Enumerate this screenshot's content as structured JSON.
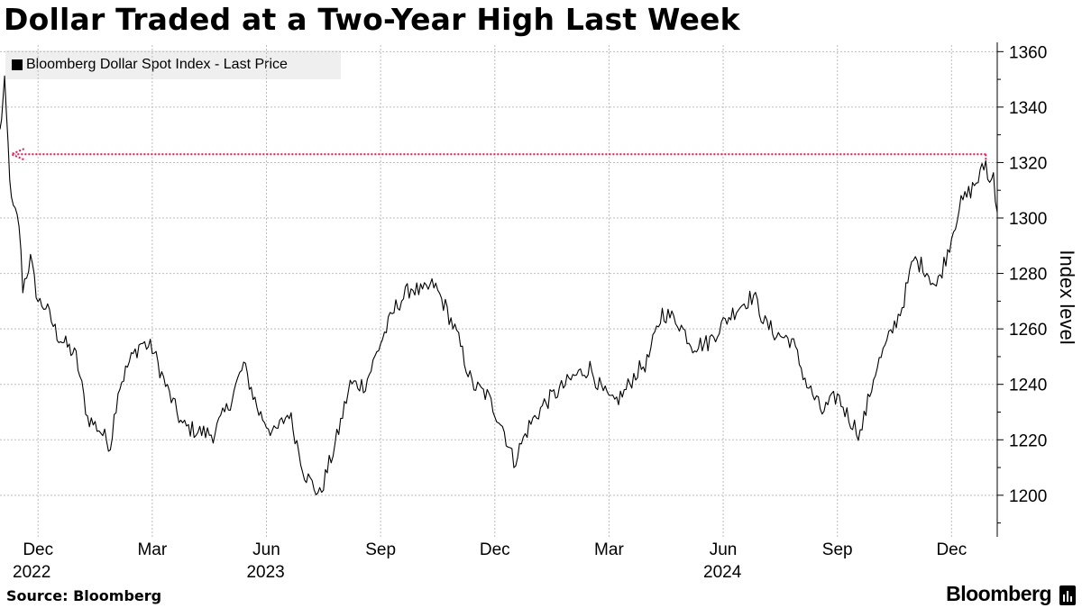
{
  "title": "Dollar Traded at a Two-Year High Last Week",
  "source": "Source: Bloomberg",
  "brand": "Bloomberg",
  "colors": {
    "line": "#000000",
    "reference": "#e8174f",
    "grid": "#bdbdbd",
    "legend_bg": "#efefef"
  },
  "chart_data": {
    "type": "line",
    "title": "Dollar Traded at a Two-Year High Last Week",
    "series": [
      {
        "name": "Bloomberg Dollar Spot Index - Last Price"
      }
    ],
    "ylabel": "Index level",
    "ylim": [
      1185,
      1364
    ],
    "yticks": [
      1200,
      1220,
      1240,
      1260,
      1280,
      1300,
      1320,
      1340,
      1360
    ],
    "xlim": [
      0,
      26.2
    ],
    "xticks": [
      {
        "m": 1,
        "label": "Dec"
      },
      {
        "m": 4,
        "label": "Mar"
      },
      {
        "m": 7,
        "label": "Jun"
      },
      {
        "m": 10,
        "label": "Sep"
      },
      {
        "m": 13,
        "label": "Dec"
      },
      {
        "m": 16,
        "label": "Mar"
      },
      {
        "m": 19,
        "label": "Jun"
      },
      {
        "m": 22,
        "label": "Sep"
      },
      {
        "m": 25,
        "label": "Dec"
      }
    ],
    "years": [
      {
        "m": 0,
        "label": "2022"
      },
      {
        "m": 7,
        "label": "2023"
      },
      {
        "m": 19,
        "label": "2024"
      }
    ],
    "x_units": "months since 2022-11-01",
    "key_points": [
      [
        0.0,
        1331
      ],
      [
        0.12,
        1348
      ],
      [
        0.3,
        1305
      ],
      [
        0.5,
        1298
      ],
      [
        0.6,
        1275
      ],
      [
        0.8,
        1285
      ],
      [
        1.0,
        1270
      ],
      [
        1.2,
        1268
      ],
      [
        1.5,
        1258
      ],
      [
        2.0,
        1250
      ],
      [
        2.3,
        1228
      ],
      [
        2.6,
        1224
      ],
      [
        2.9,
        1218
      ],
      [
        3.1,
        1238
      ],
      [
        3.4,
        1248
      ],
      [
        3.7,
        1255
      ],
      [
        4.0,
        1253
      ],
      [
        4.4,
        1238
      ],
      [
        4.8,
        1225
      ],
      [
        5.2,
        1223
      ],
      [
        5.6,
        1222
      ],
      [
        6.0,
        1232
      ],
      [
        6.4,
        1247
      ],
      [
        6.8,
        1230
      ],
      [
        7.2,
        1222
      ],
      [
        7.6,
        1230
      ],
      [
        8.0,
        1208
      ],
      [
        8.4,
        1200
      ],
      [
        8.8,
        1218
      ],
      [
        9.2,
        1240
      ],
      [
        9.6,
        1240
      ],
      [
        10.0,
        1255
      ],
      [
        10.4,
        1268
      ],
      [
        10.8,
        1275
      ],
      [
        11.1,
        1273
      ],
      [
        11.4,
        1276
      ],
      [
        11.7,
        1268
      ],
      [
        12.0,
        1258
      ],
      [
        12.4,
        1240
      ],
      [
        12.8,
        1236
      ],
      [
        13.2,
        1225
      ],
      [
        13.5,
        1212
      ],
      [
        13.9,
        1225
      ],
      [
        14.3,
        1233
      ],
      [
        14.7,
        1238
      ],
      [
        15.1,
        1243
      ],
      [
        15.5,
        1246
      ],
      [
        15.8,
        1238
      ],
      [
        16.1,
        1233
      ],
      [
        16.4,
        1237
      ],
      [
        16.7,
        1244
      ],
      [
        17.0,
        1248
      ],
      [
        17.4,
        1266
      ],
      [
        17.8,
        1263
      ],
      [
        18.2,
        1254
      ],
      [
        18.6,
        1255
      ],
      [
        19.0,
        1262
      ],
      [
        19.4,
        1268
      ],
      [
        19.8,
        1272
      ],
      [
        20.1,
        1262
      ],
      [
        20.4,
        1258
      ],
      [
        20.8,
        1256
      ],
      [
        21.2,
        1240
      ],
      [
        21.6,
        1230
      ],
      [
        22.0,
        1236
      ],
      [
        22.3,
        1228
      ],
      [
        22.6,
        1222
      ],
      [
        23.0,
        1245
      ],
      [
        23.4,
        1258
      ],
      [
        23.7,
        1268
      ],
      [
        24.0,
        1285
      ],
      [
        24.3,
        1282
      ],
      [
        24.6,
        1275
      ],
      [
        24.9,
        1288
      ],
      [
        25.2,
        1304
      ],
      [
        25.5,
        1310
      ],
      [
        25.7,
        1314
      ],
      [
        25.9,
        1320
      ],
      [
        26.0,
        1312
      ],
      [
        26.1,
        1316
      ],
      [
        26.2,
        1302
      ]
    ],
    "annotations": [
      {
        "type": "arrow",
        "style": "dotted",
        "y": 1323,
        "x_from": 25.9,
        "x_to": 0.3
      }
    ]
  }
}
